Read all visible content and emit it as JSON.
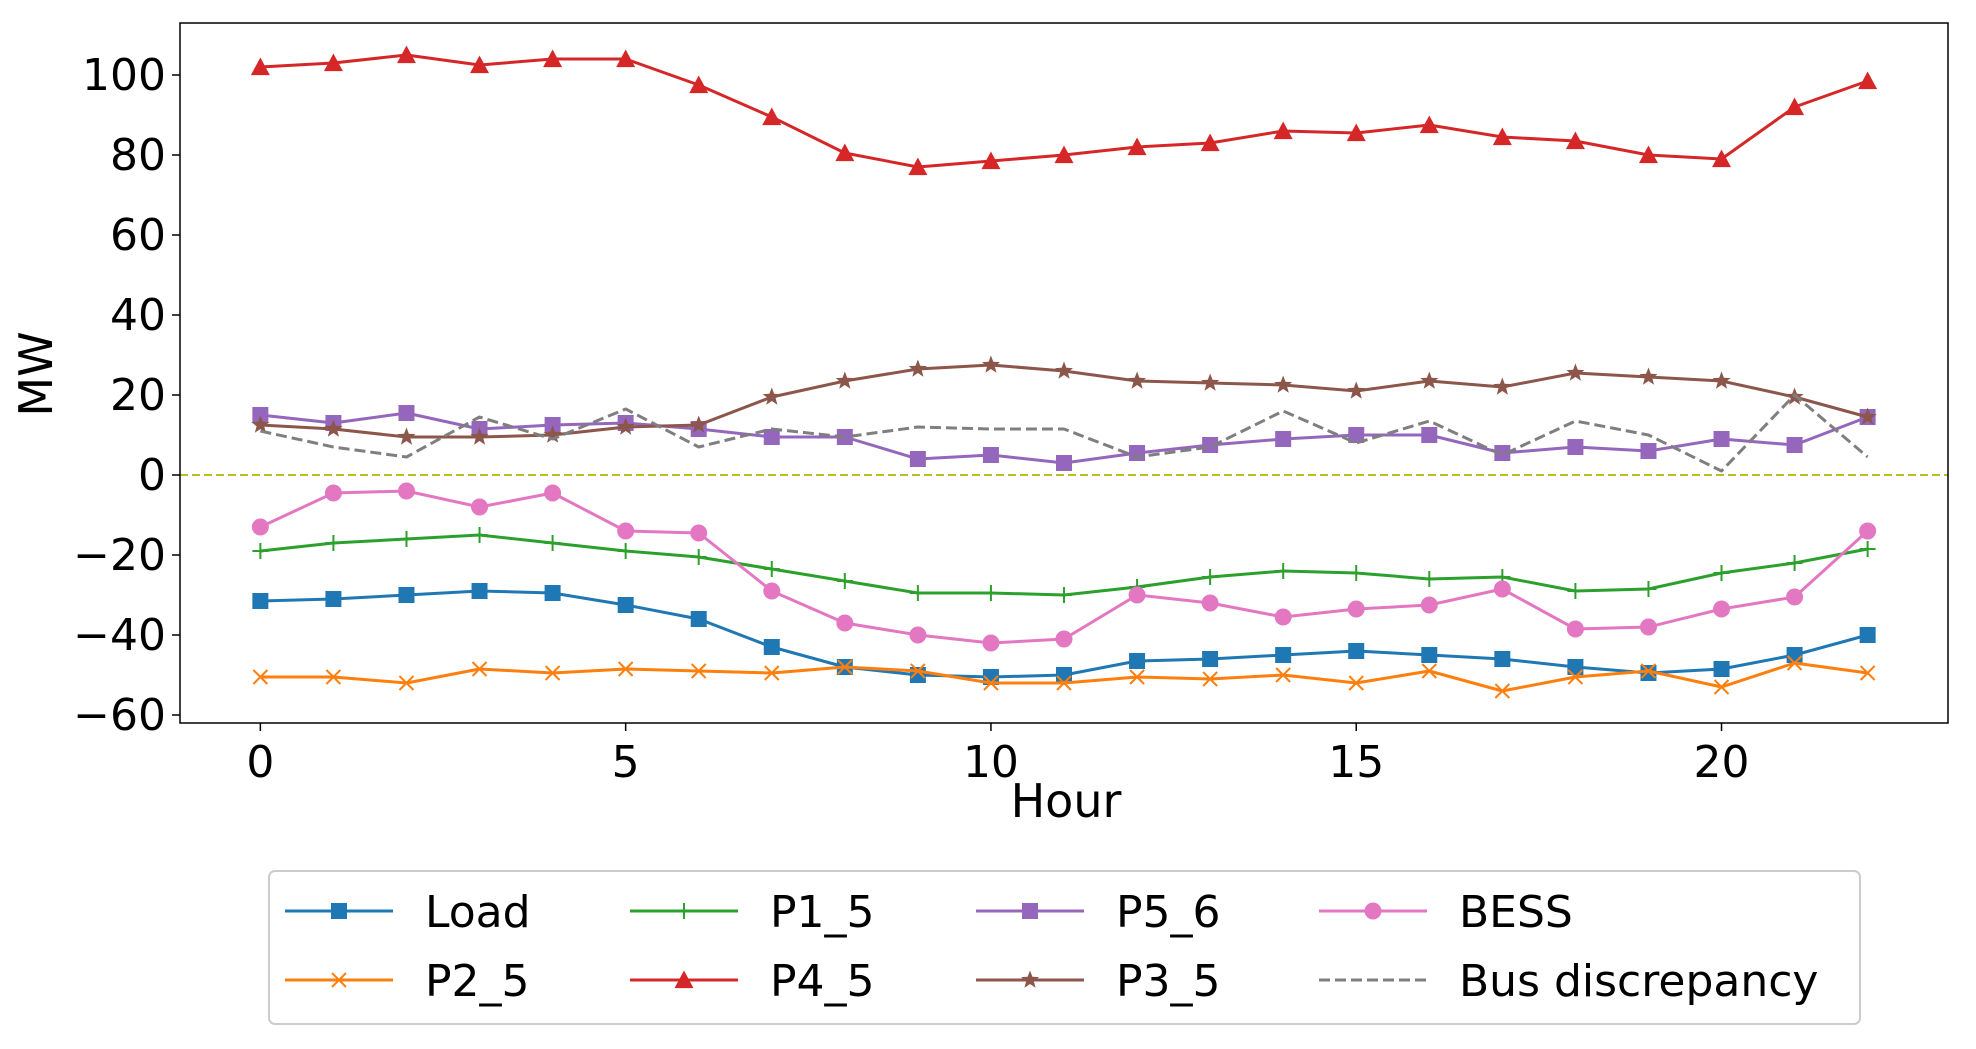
{
  "chart_data": {
    "type": "line",
    "title": "",
    "xlabel": "Hour",
    "ylabel": "MW",
    "xlim": [
      -1.1,
      23.1
    ],
    "ylim": [
      -62,
      113
    ],
    "xticks": [
      0,
      5,
      10,
      15,
      20
    ],
    "yticks": [
      -60,
      -40,
      -20,
      0,
      20,
      40,
      60,
      80,
      100
    ],
    "ytick_labels": [
      "−60",
      "−40",
      "−20",
      "0",
      "20",
      "40",
      "60",
      "80",
      "100"
    ],
    "zero_line": {
      "y": 0,
      "color": "#bcbd22",
      "style": "dashed"
    },
    "legend_position": "bottom-outside",
    "x": [
      0,
      1,
      2,
      3,
      4,
      5,
      6,
      7,
      8,
      9,
      10,
      11,
      12,
      13,
      14,
      15,
      16,
      17,
      18,
      19,
      20,
      21,
      22
    ],
    "series": [
      {
        "name": "Load",
        "color": "#1f77b4",
        "marker": "square",
        "dashed": false,
        "values": [
          -31.5,
          -31,
          -30,
          -29,
          -29.5,
          -32.5,
          -36,
          -43,
          -48,
          -50,
          -50.5,
          -50,
          -46.5,
          -46,
          -45,
          -44,
          -45,
          -46,
          -48,
          -49.5,
          -48.5,
          -45,
          -40
        ]
      },
      {
        "name": "P2_5",
        "color": "#ff7f0e",
        "marker": "x",
        "dashed": false,
        "values": [
          -50.5,
          -50.5,
          -52,
          -48.5,
          -49.5,
          -48.5,
          -49,
          -49.5,
          -48,
          -49,
          -52,
          -52,
          -50.5,
          -51,
          -50,
          -52,
          -49,
          -54,
          -50.5,
          -49,
          -53,
          -47,
          -49.5
        ]
      },
      {
        "name": "P1_5",
        "color": "#2ca02c",
        "marker": "plus",
        "dashed": false,
        "values": [
          -19,
          -17,
          -16,
          -15,
          -17,
          -19,
          -20.5,
          -23.5,
          -26.5,
          -29.5,
          -29.5,
          -30,
          -28,
          -25.5,
          -24,
          -24.5,
          -26,
          -25.5,
          -29,
          -28.5,
          -24.5,
          -22,
          -18.5
        ]
      },
      {
        "name": "P4_5",
        "color": "#d62728",
        "marker": "triangle",
        "dashed": false,
        "values": [
          102,
          103,
          105,
          102.5,
          104,
          104,
          97.5,
          89.5,
          80.5,
          77,
          78.5,
          80,
          82,
          83,
          86,
          85.5,
          87.5,
          84.5,
          83.5,
          80,
          79,
          92,
          98.5
        ]
      },
      {
        "name": "P5_6",
        "color": "#9467bd",
        "marker": "square",
        "dashed": false,
        "values": [
          15,
          13,
          15.5,
          11.5,
          12.5,
          13,
          11.5,
          9.5,
          9.5,
          4,
          5,
          3,
          5.5,
          7.5,
          9,
          10,
          10,
          5.5,
          7,
          6,
          9,
          7.5,
          14.5
        ]
      },
      {
        "name": "P3_5",
        "color": "#8c564b",
        "marker": "star",
        "dashed": false,
        "values": [
          12.5,
          11.5,
          9.5,
          9.5,
          10,
          12,
          12.5,
          19.5,
          23.5,
          26.5,
          27.5,
          26,
          23.5,
          23,
          22.5,
          21,
          23.5,
          22,
          25.5,
          24.5,
          23.5,
          19.5,
          14.5
        ]
      },
      {
        "name": "BESS",
        "color": "#e377c2",
        "marker": "circle",
        "dashed": false,
        "values": [
          -13,
          -4.5,
          -4,
          -8,
          -4.5,
          -14,
          -14.5,
          -29,
          -37,
          -40,
          -42,
          -41,
          -30,
          -32,
          -35.5,
          -33.5,
          -32.5,
          -28.5,
          -38.5,
          -38,
          -33.5,
          -30.5,
          -14
        ]
      },
      {
        "name": "Bus discrepancy",
        "color": "#7f7f7f",
        "marker": "none",
        "dashed": true,
        "values": [
          11,
          7,
          4.5,
          14.5,
          9,
          16.5,
          7,
          11.5,
          9.5,
          12,
          11.5,
          11.5,
          4.5,
          7,
          16,
          8,
          13.5,
          5,
          13.5,
          10,
          1,
          20,
          4.5
        ]
      }
    ],
    "legend_layout": [
      [
        "Load",
        "P1_5",
        "P5_6",
        "BESS"
      ],
      [
        "P2_5",
        "P4_5",
        "P3_5",
        "Bus discrepancy"
      ]
    ]
  }
}
